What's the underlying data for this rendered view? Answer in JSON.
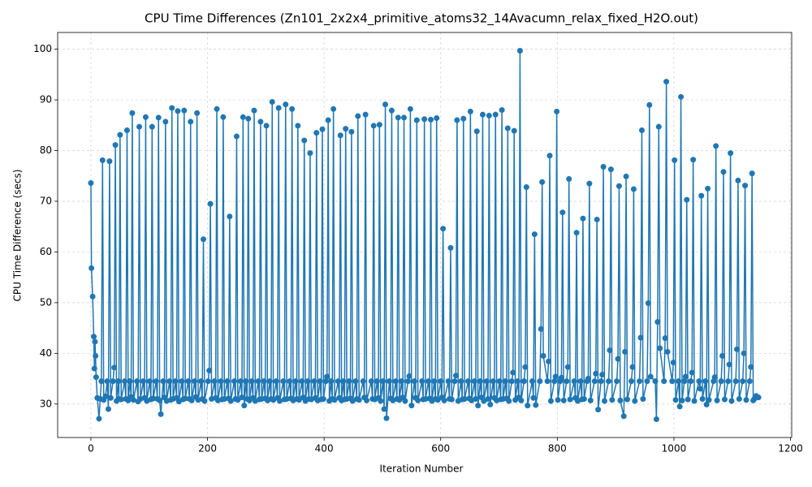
{
  "chart_data": {
    "type": "line",
    "title": "CPU Time Differences (Zn101_2x2x4_primitive_atoms32_14Avacumn_relax_fixed_H2O.out)",
    "x_label": "Iteration Number",
    "y_label": "CPU Time Difference (secs)",
    "xlim": [
      -57,
      1202
    ],
    "ylim": [
      23.4,
      103.3
    ],
    "xticks": [
      0,
      200,
      400,
      600,
      800,
      1000,
      1200
    ],
    "yticks": [
      30,
      40,
      50,
      60,
      70,
      80,
      90,
      100
    ],
    "grid": true,
    "markers": true,
    "series": [
      {
        "name": "CPU Time Difference",
        "color": "#1f77b4",
        "x": [
          0,
          1,
          3,
          5,
          6,
          7,
          8,
          9,
          11,
          14,
          16,
          18,
          20,
          22,
          25,
          28,
          30,
          32,
          34,
          38,
          40,
          42,
          44,
          47,
          48,
          50,
          52,
          58,
          60,
          62,
          64,
          67,
          69,
          71,
          73,
          79,
          81,
          83,
          85,
          90,
          92,
          94,
          96,
          101,
          103,
          105,
          107,
          112,
          114,
          116,
          118,
          120,
          124,
          126,
          128,
          130,
          135,
          137,
          139,
          141,
          145,
          147,
          149,
          151,
          156,
          158,
          160,
          162,
          167,
          169,
          171,
          173,
          178,
          180,
          182,
          184,
          189,
          191,
          193,
          195,
          201,
          203,
          205,
          207,
          212,
          214,
          216,
          218,
          223,
          225,
          227,
          229,
          234,
          236,
          238,
          240,
          246,
          248,
          250,
          252,
          257,
          259,
          261,
          263,
          266,
          268,
          270,
          272,
          276,
          278,
          280,
          282,
          287,
          289,
          291,
          293,
          297,
          299,
          301,
          303,
          307,
          309,
          311,
          313,
          318,
          320,
          322,
          324,
          330,
          332,
          334,
          336,
          341,
          343,
          345,
          347,
          351,
          353,
          355,
          357,
          362,
          364,
          366,
          368,
          372,
          374,
          376,
          378,
          383,
          385,
          387,
          389,
          393,
          395,
          397,
          399,
          403,
          405,
          407,
          409,
          412,
          414,
          416,
          418,
          424,
          426,
          428,
          430,
          433,
          435,
          437,
          439,
          443,
          445,
          447,
          449,
          454,
          456,
          458,
          460,
          467,
          469,
          471,
          473,
          481,
          483,
          485,
          487,
          491,
          493,
          495,
          497,
          501,
          503,
          505,
          507,
          512,
          514,
          516,
          518,
          523,
          525,
          527,
          529,
          533,
          535,
          537,
          539,
          544,
          546,
          548,
          550,
          555,
          557,
          559,
          561,
          568,
          570,
          572,
          574,
          579,
          581,
          583,
          585,
          589,
          591,
          593,
          595,
          600,
          602,
          604,
          606,
          613,
          615,
          617,
          619,
          624,
          626,
          628,
          630,
          635,
          637,
          639,
          641,
          647,
          649,
          651,
          653,
          658,
          660,
          662,
          664,
          668,
          670,
          672,
          674,
          679,
          681,
          683,
          685,
          690,
          692,
          694,
          696,
          701,
          703,
          705,
          707,
          711,
          713,
          715,
          717,
          722,
          724,
          726,
          728,
          732,
          734,
          736,
          738,
          743,
          745,
          747,
          749,
          757,
          759,
          761,
          763,
          770,
          772,
          774,
          776,
          783,
          785,
          787,
          789,
          795,
          797,
          799,
          801,
          805,
          807,
          809,
          811,
          816,
          818,
          820,
          822,
          829,
          831,
          833,
          835,
          840,
          842,
          844,
          846,
          851,
          853,
          855,
          857,
          864,
          866,
          868,
          870,
          875,
          877,
          879,
          881,
          888,
          890,
          892,
          894,
          902,
          904,
          906,
          908,
          914,
          916,
          918,
          920,
          927,
          929,
          931,
          933,
          941,
          943,
          945,
          947,
          954,
          956,
          958,
          960,
          968,
          970,
          972,
          974,
          976,
          983,
          985,
          987,
          989,
          997,
          999,
          1001,
          1003,
          1008,
          1010,
          1012,
          1014,
          1018,
          1020,
          1022,
          1024,
          1029,
          1031,
          1033,
          1035,
          1043,
          1045,
          1047,
          1049,
          1054,
          1056,
          1058,
          1060,
          1068,
          1070,
          1072,
          1074,
          1081,
          1083,
          1085,
          1087,
          1093,
          1095,
          1097,
          1099,
          1106,
          1108,
          1110,
          1112,
          1118,
          1120,
          1122,
          1124,
          1130,
          1132,
          1134,
          1136,
          1138,
          1141,
          1145
        ],
        "values": [
          73.6,
          56.8,
          51.2,
          43.3,
          37.0,
          42.3,
          39.5,
          35.3,
          31.2,
          27.1,
          31.0,
          34.5,
          78.1,
          30.8,
          31.5,
          34.5,
          29.0,
          77.9,
          31.2,
          34.5,
          37.2,
          81.1,
          30.6,
          34.5,
          31.0,
          83.1,
          30.9,
          34.5,
          31.0,
          84.0,
          30.7,
          34.5,
          31.4,
          87.4,
          30.8,
          34.5,
          30.5,
          84.7,
          31.0,
          34.5,
          31.2,
          86.6,
          30.6,
          34.5,
          30.9,
          84.7,
          31.1,
          34.5,
          31.0,
          86.5,
          30.7,
          28.0,
          34.5,
          31.3,
          85.7,
          30.6,
          34.5,
          30.8,
          88.4,
          31.0,
          34.5,
          31.2,
          87.8,
          30.5,
          34.5,
          30.9,
          87.9,
          31.1,
          34.5,
          31.0,
          85.7,
          30.7,
          34.5,
          31.4,
          87.4,
          30.8,
          34.5,
          31.0,
          62.5,
          30.6,
          34.5,
          36.6,
          69.5,
          31.0,
          34.5,
          31.2,
          88.2,
          30.7,
          34.5,
          30.9,
          86.6,
          31.0,
          34.5,
          31.1,
          67.0,
          30.6,
          34.5,
          31.0,
          82.8,
          30.8,
          34.5,
          31.3,
          86.6,
          29.7,
          34.5,
          31.0,
          86.3,
          30.7,
          34.5,
          31.2,
          87.9,
          30.6,
          34.5,
          30.9,
          85.7,
          31.0,
          34.5,
          31.1,
          84.9,
          30.7,
          34.5,
          31.0,
          89.6,
          30.8,
          34.5,
          31.2,
          88.4,
          30.6,
          34.5,
          30.9,
          89.1,
          31.0,
          34.5,
          31.1,
          88.2,
          30.7,
          34.5,
          31.0,
          84.9,
          30.8,
          34.5,
          31.3,
          82.0,
          30.6,
          34.5,
          31.0,
          79.5,
          30.9,
          34.5,
          31.2,
          83.5,
          30.7,
          34.5,
          30.9,
          84.2,
          31.0,
          34.5,
          35.4,
          86.0,
          30.6,
          34.5,
          31.0,
          88.2,
          30.8,
          34.5,
          31.2,
          83.0,
          30.7,
          34.5,
          30.9,
          84.3,
          31.0,
          34.5,
          31.1,
          83.7,
          30.6,
          34.5,
          31.0,
          86.8,
          30.8,
          34.5,
          31.3,
          87.1,
          30.7,
          34.5,
          31.0,
          84.9,
          30.9,
          34.5,
          31.2,
          85.1,
          30.6,
          34.5,
          29.0,
          89.1,
          27.2,
          34.5,
          31.1,
          87.9,
          30.7,
          34.5,
          31.0,
          86.5,
          30.8,
          34.5,
          31.3,
          86.5,
          30.6,
          34.5,
          35.5,
          88.2,
          29.7,
          34.5,
          31.2,
          86.0,
          30.7,
          34.5,
          30.9,
          86.2,
          31.0,
          34.5,
          31.1,
          86.1,
          30.6,
          34.5,
          31.0,
          86.4,
          30.8,
          34.5,
          31.3,
          64.6,
          30.7,
          34.5,
          31.0,
          60.8,
          30.9,
          34.5,
          35.6,
          86.0,
          30.6,
          34.5,
          30.9,
          86.3,
          31.0,
          34.5,
          31.1,
          87.7,
          30.7,
          34.5,
          31.0,
          83.8,
          29.7,
          34.5,
          31.3,
          87.1,
          30.6,
          34.5,
          31.0,
          86.9,
          29.9,
          34.5,
          31.2,
          87.1,
          30.7,
          34.5,
          30.9,
          88.0,
          31.0,
          34.5,
          31.1,
          84.4,
          30.6,
          34.5,
          36.2,
          83.9,
          30.8,
          34.5,
          31.3,
          99.7,
          30.7,
          34.5,
          37.3,
          72.8,
          29.7,
          34.5,
          31.2,
          63.5,
          29.8,
          34.5,
          44.8,
          73.8,
          39.5,
          34.5,
          38.4,
          79.0,
          30.6,
          34.5,
          35.4,
          87.7,
          30.8,
          34.5,
          35.2,
          67.8,
          30.7,
          34.5,
          37.3,
          74.4,
          30.9,
          34.5,
          31.2,
          63.8,
          30.6,
          34.5,
          30.9,
          66.6,
          31.0,
          34.5,
          35.0,
          73.5,
          30.7,
          34.5,
          36.0,
          66.4,
          28.9,
          34.5,
          35.8,
          76.8,
          30.6,
          34.5,
          40.6,
          76.3,
          30.8,
          34.5,
          38.9,
          73.0,
          30.7,
          27.6,
          40.3,
          74.9,
          30.9,
          34.5,
          37.3,
          72.4,
          30.6,
          34.5,
          43.1,
          84.0,
          31.0,
          34.5,
          49.9,
          89.0,
          35.4,
          34.5,
          27.0,
          46.2,
          84.7,
          41.0,
          34.5,
          43.0,
          93.6,
          40.3,
          34.5,
          38.2,
          78.1,
          30.8,
          34.5,
          29.5,
          90.6,
          30.7,
          34.5,
          35.4,
          70.3,
          30.9,
          34.5,
          36.2,
          78.2,
          30.6,
          34.5,
          33.0,
          71.1,
          31.0,
          34.5,
          29.9,
          72.5,
          30.8,
          34.5,
          35.3,
          80.9,
          30.7,
          34.5,
          39.5,
          75.8,
          30.9,
          34.5,
          37.8,
          79.5,
          30.6,
          34.5,
          40.8,
          74.1,
          31.0,
          34.5,
          40.0,
          73.1,
          30.8,
          34.5,
          37.3,
          75.5,
          30.7,
          31.0,
          31.6,
          31.3
        ]
      }
    ]
  }
}
